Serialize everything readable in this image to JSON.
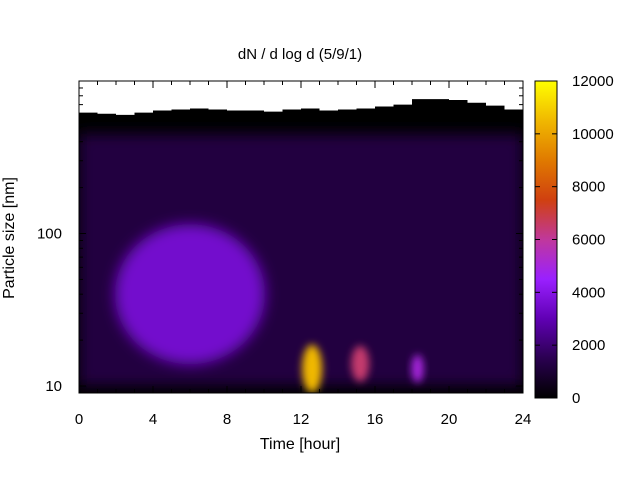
{
  "chart_data": {
    "type": "heatmap",
    "title": "dN / d log d (5/9/1)",
    "xlabel": "Time [hour]",
    "ylabel": "Particle size [nm]",
    "x_axis": {
      "range": [
        0,
        24
      ],
      "ticks": [
        0,
        4,
        8,
        12,
        16,
        20,
        24
      ],
      "scale": "linear"
    },
    "y_axis": {
      "range": [
        9,
        1000
      ],
      "scale": "log",
      "labeled_ticks": [
        10,
        100
      ],
      "tick_labels": [
        "10",
        "100"
      ]
    },
    "colorbar": {
      "range": [
        0,
        12000
      ],
      "ticks": [
        0,
        2000,
        4000,
        6000,
        8000,
        10000,
        12000
      ],
      "tick_labels": [
        "0",
        "2000",
        "4000",
        "6000",
        "8000",
        "10000",
        "12000"
      ],
      "palette": [
        "#000000",
        "#2a0050",
        "#6000b4",
        "#9a20ff",
        "#c0389c",
        "#d04010",
        "#e07a00",
        "#f0b800",
        "#ffff00"
      ]
    },
    "grid": false,
    "data_upper_limit_nm": [
      [
        0,
        620
      ],
      [
        1,
        610
      ],
      [
        2,
        600
      ],
      [
        3,
        620
      ],
      [
        4,
        640
      ],
      [
        5,
        650
      ],
      [
        6,
        660
      ],
      [
        7,
        650
      ],
      [
        8,
        640
      ],
      [
        9,
        640
      ],
      [
        10,
        630
      ],
      [
        11,
        650
      ],
      [
        12,
        660
      ],
      [
        13,
        640
      ],
      [
        14,
        650
      ],
      [
        15,
        660
      ],
      [
        16,
        680
      ],
      [
        17,
        700
      ],
      [
        18,
        760
      ],
      [
        19,
        760
      ],
      [
        20,
        750
      ],
      [
        21,
        720
      ],
      [
        22,
        690
      ],
      [
        23,
        650
      ],
      [
        24,
        610
      ]
    ],
    "features": [
      {
        "name": "background_band",
        "size_range_nm": [
          10,
          450
        ],
        "time_range": [
          0,
          24
        ],
        "approx_value": 1200
      },
      {
        "name": "broad_mode",
        "center_time": 6,
        "center_size_nm": 40,
        "approx_value": 3500
      },
      {
        "name": "nucleation_burst",
        "center_time": 12.6,
        "center_size_nm": 13,
        "approx_value": 10500
      },
      {
        "name": "secondary_burst",
        "center_time": 15.2,
        "center_size_nm": 14,
        "approx_value": 6500
      },
      {
        "name": "late_burst",
        "center_time": 18.3,
        "center_size_nm": 13,
        "approx_value": 5000
      }
    ]
  }
}
